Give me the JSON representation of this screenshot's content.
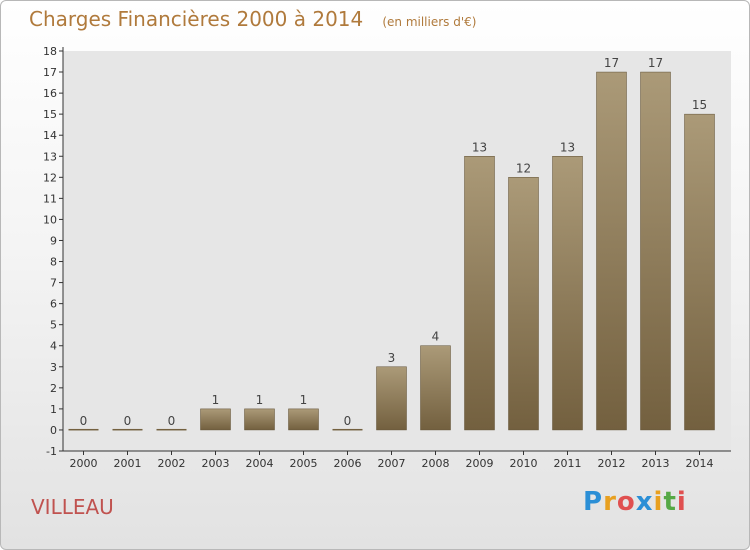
{
  "header": {
    "title": "Charges Financières 2000 à 2014",
    "unit": "(en milliers d'€)"
  },
  "commune": "VILLEAU",
  "logo": {
    "letters": [
      "P",
      "r",
      "o",
      "x",
      "i",
      "t",
      "i"
    ],
    "colors": [
      "#2b8fd6",
      "#e8a020",
      "#e05050",
      "#2b8fd6",
      "#e8a020",
      "#56a845",
      "#e05050"
    ]
  },
  "colors": {
    "bar_light": "#ab9a78",
    "bar_dark": "#73603f",
    "plot_background": "#e6e6e6",
    "title": "#b07a3c",
    "commune": "#c0524f"
  },
  "chart_data": {
    "type": "bar",
    "title": "Charges Financières 2000 à 2014",
    "subtitle": "(en milliers d'€)",
    "xlabel": "",
    "ylabel": "",
    "categories": [
      "2000",
      "2001",
      "2002",
      "2003",
      "2004",
      "2005",
      "2006",
      "2007",
      "2008",
      "2009",
      "2010",
      "2011",
      "2012",
      "2013",
      "2014"
    ],
    "values": [
      0,
      0,
      0,
      1,
      1,
      1,
      0,
      3,
      4,
      13,
      12,
      13,
      17,
      17,
      15
    ],
    "ylim": [
      -1,
      18
    ],
    "yticks": [
      -1,
      0,
      1,
      2,
      3,
      4,
      5,
      6,
      7,
      8,
      9,
      10,
      11,
      12,
      13,
      14,
      15,
      16,
      17,
      18
    ],
    "grid": false,
    "legend": "none"
  }
}
